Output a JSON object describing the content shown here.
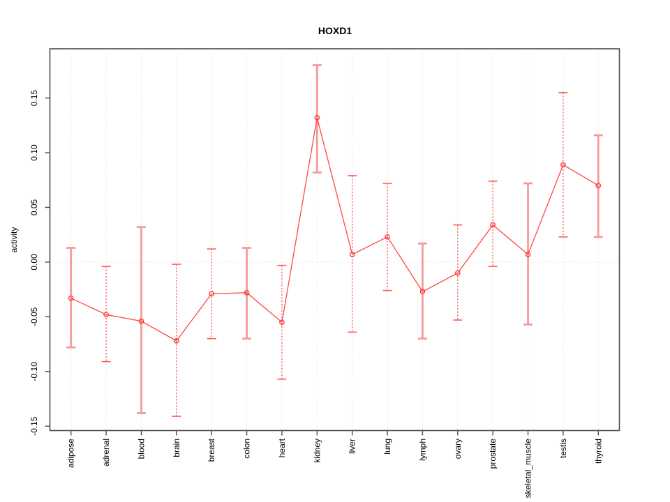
{
  "window": {
    "title": "HOXD1"
  },
  "chart_data": {
    "type": "line",
    "title": "HOXD1",
    "xlabel": "",
    "ylabel": "activity",
    "legend": "none",
    "grid": "vertical dotted gridlines at each category plus dotted horizontal zero line",
    "ylim": [
      -0.154,
      0.195
    ],
    "categories": [
      "adipose",
      "adrenal",
      "blood",
      "brain",
      "breast",
      "colon",
      "heart",
      "kidney",
      "liver",
      "lung",
      "lymph",
      "ovary",
      "prostate",
      "skeletal_muscle",
      "testis",
      "thyroid"
    ],
    "series": [
      {
        "name": "activity",
        "values": [
          -0.033,
          -0.048,
          -0.054,
          -0.072,
          -0.029,
          -0.028,
          -0.055,
          0.132,
          0.007,
          0.023,
          -0.027,
          -0.01,
          0.034,
          0.007,
          0.089,
          0.07
        ],
        "error_high": [
          0.013,
          -0.004,
          0.032,
          -0.002,
          0.012,
          0.013,
          -0.003,
          0.18,
          0.079,
          0.072,
          0.017,
          0.034,
          0.074,
          0.072,
          0.155,
          0.116
        ],
        "error_low": [
          -0.078,
          -0.091,
          -0.138,
          -0.141,
          -0.07,
          -0.07,
          -0.107,
          0.082,
          -0.064,
          -0.026,
          -0.07,
          -0.053,
          -0.004,
          -0.057,
          0.023,
          0.023
        ],
        "whisker_styles": [
          "solid",
          "dotted",
          "solid",
          "dotted",
          "dotted",
          "solid",
          "dotted",
          "solid",
          "dotted",
          "dotted",
          "solid",
          "dotted",
          "dotted",
          "solid",
          "dotted",
          "solid"
        ]
      }
    ],
    "y_ticks": [
      {
        "v": 0.15,
        "label": "0.15"
      },
      {
        "v": 0.1,
        "label": "0.10"
      },
      {
        "v": 0.05,
        "label": "0.05"
      },
      {
        "v": 0.0,
        "label": "0.00"
      },
      {
        "v": -0.05,
        "label": "-0.05"
      },
      {
        "v": -0.1,
        "label": "-0.10"
      },
      {
        "v": -0.15,
        "label": "-0.15"
      }
    ],
    "colors": {
      "point": "#ff3232",
      "line": "#ff4545",
      "whisker_solid": "#f89a9a",
      "whisker_dotted": "#ff5c5c",
      "gridline": "#d9d9d9",
      "zero_line": "#cfcfcf",
      "box": "#4d4d4d",
      "text": "#000000",
      "background": "#ffffff"
    }
  }
}
